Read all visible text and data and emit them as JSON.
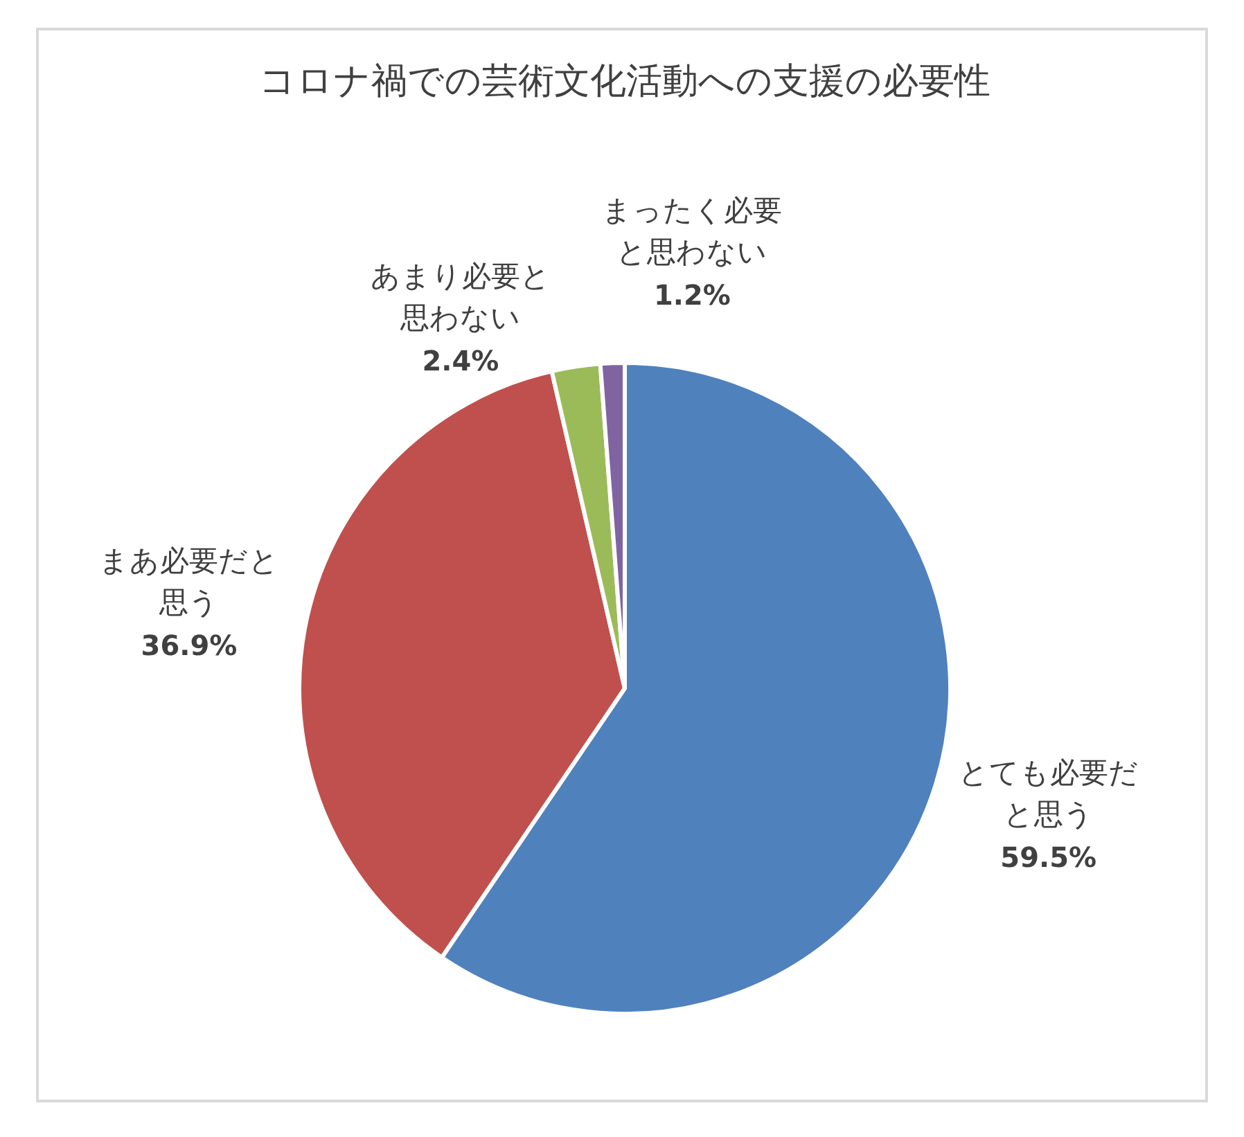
{
  "chart_data": {
    "type": "pie",
    "title": "コロナ禍での芸術文化活動への支援の必要性",
    "categories": [
      "とても必要だと思う",
      "まあ必要だと思う",
      "あまり必要と思わない",
      "まったく必要と思わない"
    ],
    "values": [
      59.5,
      36.9,
      2.4,
      1.2
    ],
    "colors": [
      "#4f81bd",
      "#c0504d",
      "#9bbb59",
      "#8064a2"
    ],
    "value_labels": [
      "59.5%",
      "36.9%",
      "2.4%",
      "1.2%"
    ]
  }
}
